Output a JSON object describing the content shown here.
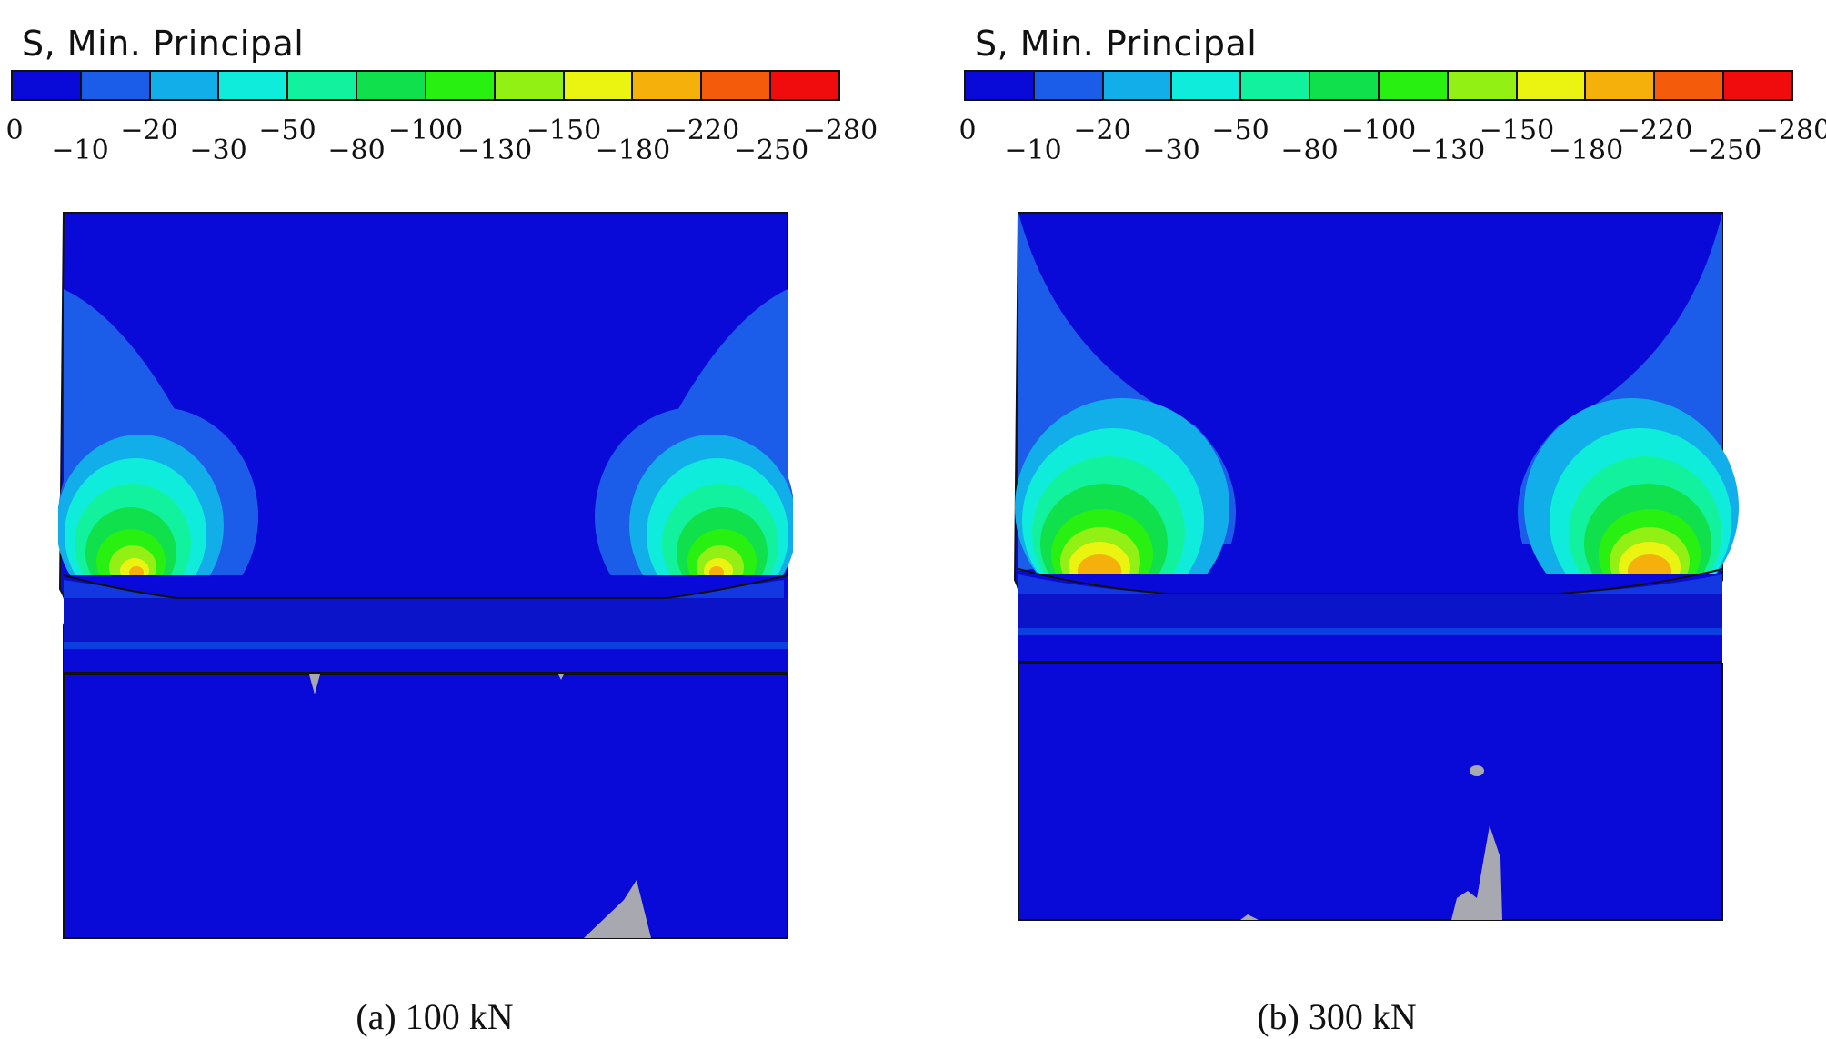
{
  "legend": {
    "title": "S, Min. Principal",
    "colors": [
      "#0a0ad8",
      "#1b5ce8",
      "#12aeea",
      "#10ecdc",
      "#12f29e",
      "#10e04c",
      "#28f010",
      "#92f014",
      "#eaf410",
      "#f6b00c",
      "#f45c0c",
      "#f00c0c"
    ],
    "ticks": [
      "0",
      "−10",
      "−20",
      "−30",
      "−50",
      "−80",
      "−100",
      "−130",
      "−150",
      "−180",
      "−220",
      "−250",
      "−280"
    ]
  },
  "panels": [
    {
      "caption": "(a)  100 kN"
    },
    {
      "caption": "(b)  300 kN"
    }
  ],
  "contour_colors": {
    "background": "#0a0ad8",
    "level1": "#1b5ce8",
    "level2": "#12aeea",
    "level3": "#10ecdc",
    "level4": "#12f29e",
    "level5": "#10e04c",
    "level6": "#28f010",
    "level7": "#92f014",
    "level8": "#eaf410",
    "level9": "#f6b00c",
    "grey": "#a8a8b0"
  }
}
